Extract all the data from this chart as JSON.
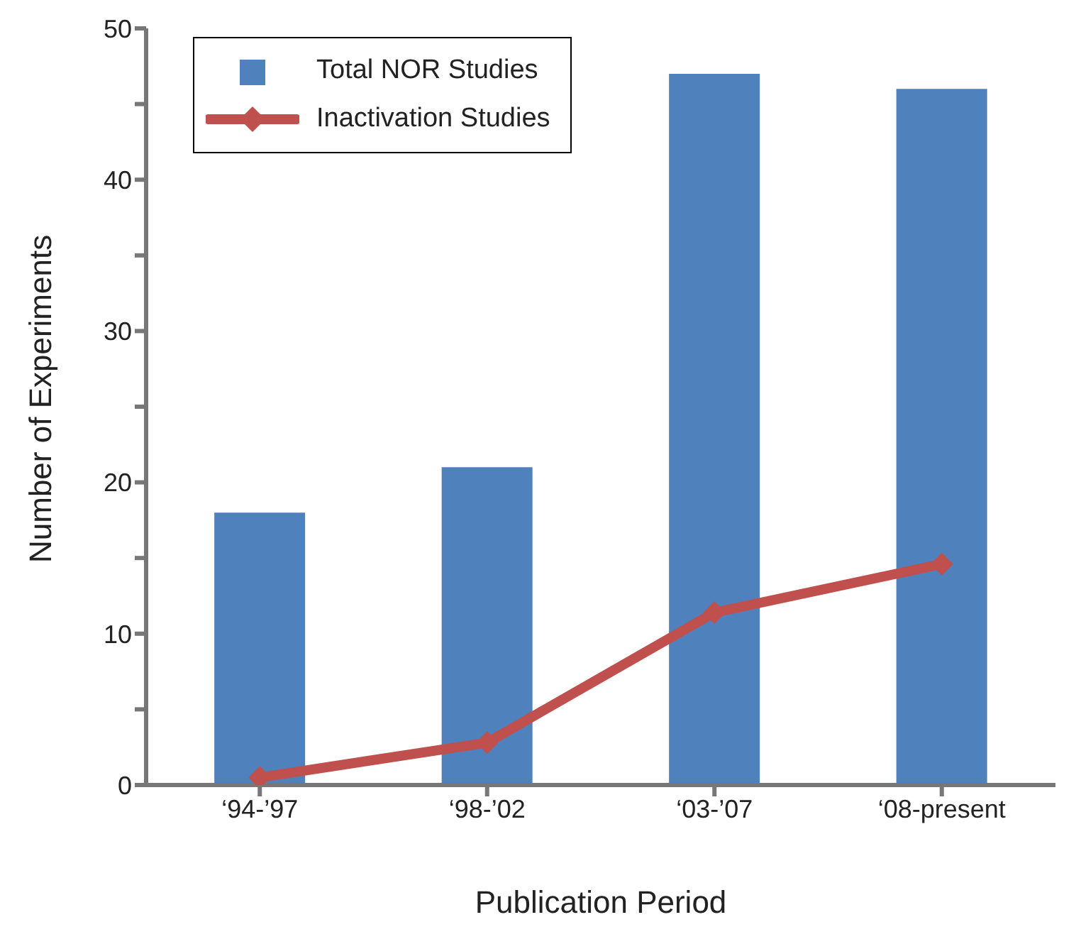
{
  "chart_data": {
    "type": "bar",
    "xlabel": "Publication Period",
    "ylabel": "Number of Experiments",
    "categories": [
      "‘94-’97",
      "‘98-’02",
      "‘03-’07",
      "‘08-present"
    ],
    "series": [
      {
        "name": "Total NOR Studies",
        "color": "#4f81bd",
        "values": [
          18,
          21,
          47,
          46
        ]
      },
      {
        "name": "Inactivation Studies",
        "type": "line",
        "color": "#c0504d",
        "values": [
          0.5,
          2.8,
          11.4,
          14.6
        ],
        "marker": "diamond"
      }
    ],
    "ylim": [
      0,
      50
    ],
    "yticks": [
      0,
      {
        "value": 5,
        "label": null
      },
      10,
      {
        "value": 15,
        "label": null
      },
      20,
      {
        "value": 25,
        "label": null
      },
      30,
      {
        "value": 35,
        "label": null
      },
      40,
      {
        "value": 45,
        "label": null
      },
      50
    ],
    "grid": false,
    "legend": "top left"
  }
}
